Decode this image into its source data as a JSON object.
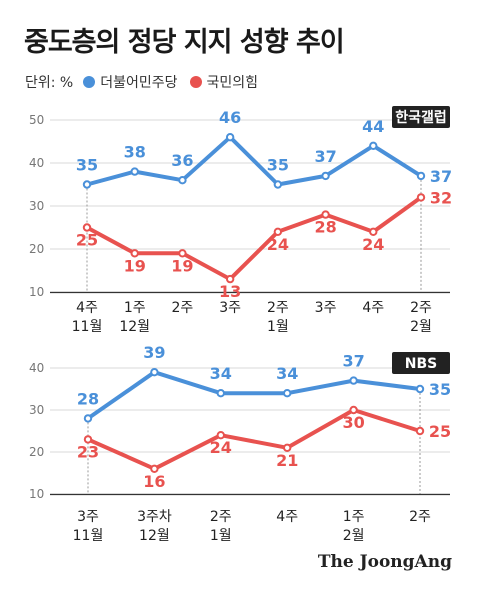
{
  "title": "중도층의 정당 지지 성향 추이",
  "legend": {
    "unit": "단위: %",
    "items": [
      {
        "label": "더불어민주당",
        "color": "#4a90d9"
      },
      {
        "label": "국민의힘",
        "color": "#e8524f"
      }
    ]
  },
  "footer": "The JoongAng",
  "chart_data": [
    {
      "type": "line",
      "source_badge": "한국갤럽",
      "categories": [
        [
          "4주",
          "11월"
        ],
        [
          "1주",
          "12월"
        ],
        [
          "2주",
          ""
        ],
        [
          "3주",
          ""
        ],
        [
          "2주",
          "1월"
        ],
        [
          "3주",
          ""
        ],
        [
          "4주",
          ""
        ],
        [
          "2주",
          "2월"
        ]
      ],
      "yticks": [
        10,
        20,
        30,
        40,
        50
      ],
      "ylim": [
        10,
        50
      ],
      "series": [
        {
          "name": "더불어민주당",
          "color": "#4a90d9",
          "values": [
            35,
            38,
            36,
            46,
            35,
            37,
            44,
            37
          ]
        },
        {
          "name": "국민의힘",
          "color": "#e8524f",
          "values": [
            25,
            19,
            19,
            13,
            24,
            28,
            24,
            32
          ]
        }
      ]
    },
    {
      "type": "line",
      "source_badge": "NBS",
      "categories": [
        [
          "3주",
          "11월"
        ],
        [
          "3주차",
          "12월"
        ],
        [
          "2주",
          "1월"
        ],
        [
          "4주",
          ""
        ],
        [
          "1주",
          "2월"
        ],
        [
          "2주",
          ""
        ]
      ],
      "yticks": [
        10,
        20,
        30,
        40
      ],
      "ylim": [
        10,
        40
      ],
      "series": [
        {
          "name": "더불어민주당",
          "color": "#4a90d9",
          "values": [
            28,
            39,
            34,
            34,
            37,
            35
          ]
        },
        {
          "name": "국민의힘",
          "color": "#e8524f",
          "values": [
            23,
            16,
            24,
            21,
            30,
            25
          ]
        }
      ]
    }
  ]
}
